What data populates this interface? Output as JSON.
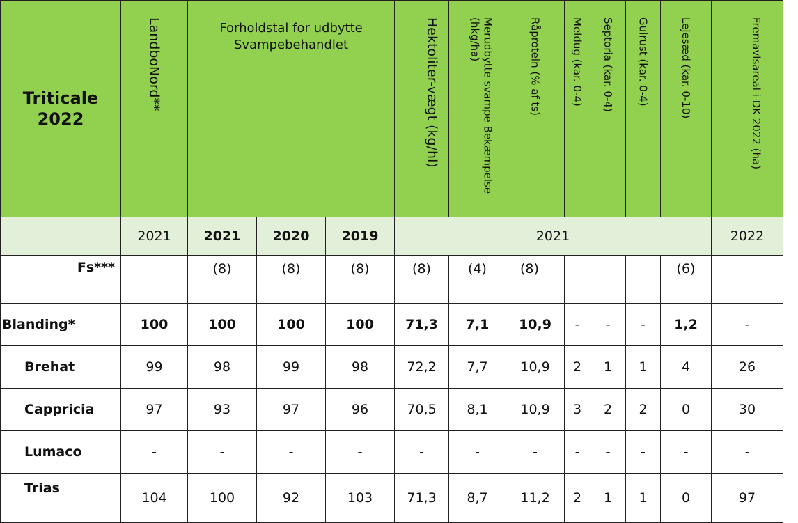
{
  "table": {
    "title": "Triticale 2022",
    "header": {
      "landbonord": "LandboNord**",
      "forholdstal": "Forholdstal for udbytte Svampebehandlet",
      "hektoliter": "Hektoliter-vægt (kg/hl)",
      "merudbytte": "Merudbytte svampe Bekæmpelse (hkg/ha)",
      "raprotein": "Råprotein (% af ts)",
      "meldug": "Meldug (kar. 0-4)",
      "septoria": "Septoria (kar. 0-4)",
      "gulrust": "Gulrust (kar. 0-4)",
      "lejesaed": "Lejesæd (kar. 0-10)",
      "fremavl": "Fremavlsareal i DK 2022 (ha)"
    },
    "years": {
      "landbonord": "2021",
      "y1": "2021",
      "y2": "2020",
      "y3": "2019",
      "mid": "2021",
      "fremavl": "2022"
    },
    "fs_row": {
      "label": "Fs***",
      "y1": "(8)",
      "y2": "(8)",
      "y3": "(8)",
      "hektoliter": "(8)",
      "merudbytte": "(4)",
      "raprotein": "(8)",
      "lejesaed": "(6)"
    },
    "rows": [
      {
        "name": "Blanding*",
        "landbonord": "100",
        "y1": "100",
        "y2": "100",
        "y3": "100",
        "hektoliter": "71,3",
        "merudbytte": "7,1",
        "raprotein": "10,9",
        "meldug": "-",
        "septoria": "-",
        "gulrust": "-",
        "lejesaed": "1,2",
        "fremavl": "-"
      },
      {
        "name": "Brehat",
        "landbonord": "99",
        "y1": "98",
        "y2": "99",
        "y3": "98",
        "hektoliter": "72,2",
        "merudbytte": "7,7",
        "raprotein": "10,9",
        "meldug": "2",
        "septoria": "1",
        "gulrust": "1",
        "lejesaed": "4",
        "fremavl": "26"
      },
      {
        "name": "Cappricia",
        "landbonord": "97",
        "y1": "93",
        "y2": "97",
        "y3": "96",
        "hektoliter": "70,5",
        "merudbytte": "8,1",
        "raprotein": "10,9",
        "meldug": "3",
        "septoria": "2",
        "gulrust": "2",
        "lejesaed": "0",
        "fremavl": "30"
      },
      {
        "name": "Lumaco",
        "landbonord": "-",
        "y1": "-",
        "y2": "-",
        "y3": "-",
        "hektoliter": "-",
        "merudbytte": "-",
        "raprotein": "-",
        "meldug": "-",
        "septoria": "-",
        "gulrust": "-",
        "lejesaed": "-",
        "fremavl": "-"
      },
      {
        "name": "Trias",
        "landbonord": "104",
        "y1": "100",
        "y2": "92",
        "y3": "103",
        "hektoliter": "71,3",
        "merudbytte": "8,7",
        "raprotein": "11,2",
        "meldug": "2",
        "septoria": "1",
        "gulrust": "1",
        "lejesaed": "0",
        "fremavl": "97"
      }
    ]
  },
  "colors": {
    "header_green": "#92d050",
    "year_row_green": "#e2efd9"
  }
}
